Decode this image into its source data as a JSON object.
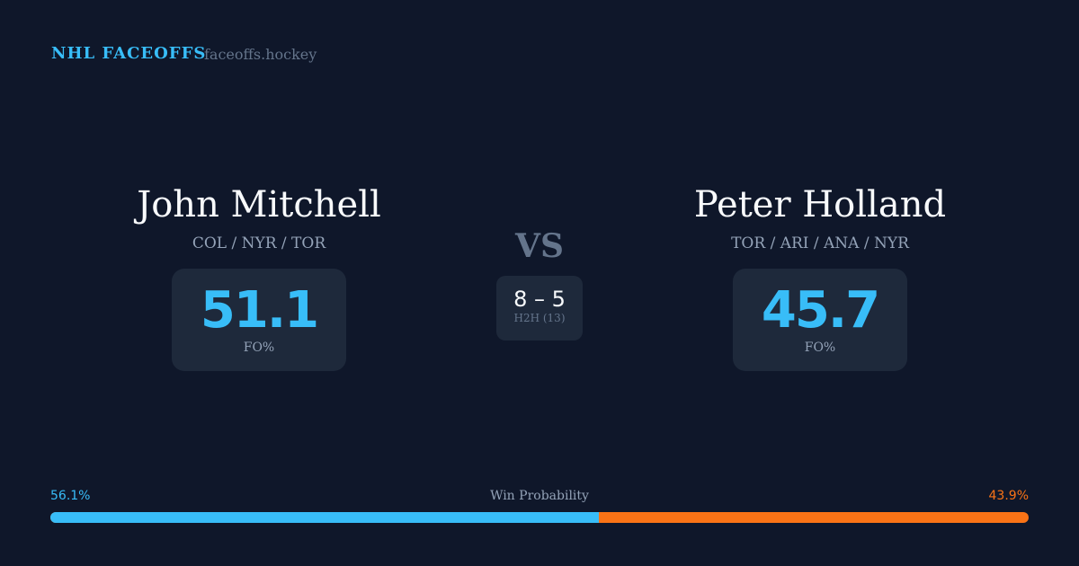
{
  "brand": "NHL FACEOFFS",
  "site": "faceoffs.hockey",
  "left": {
    "name": "John Mitchell",
    "teams": "COL / NYR / TOR",
    "fo": "51.1",
    "fo_label": "FO%"
  },
  "right": {
    "name": "Peter Holland",
    "teams": "TOR / ARI / ANA / NYR",
    "fo": "45.7",
    "fo_label": "FO%"
  },
  "vs": "VS",
  "h2h": {
    "score": "8 – 5",
    "label": "H2H (13)"
  },
  "win": {
    "label": "Win Probability",
    "left": "56.1%",
    "right": "43.9%",
    "left_fraction": 0.561,
    "colors": {
      "left": "#38bdf8",
      "right": "#f97316"
    }
  }
}
